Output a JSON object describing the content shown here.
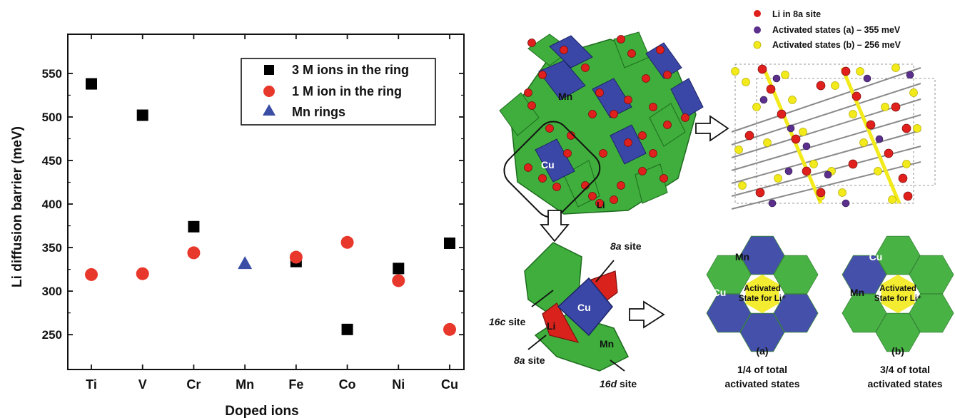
{
  "chart_data": {
    "type": "scatter",
    "ylabel": "Li diffusion barrier (meV)",
    "xlabel": "Doped ions",
    "categories": [
      "Ti",
      "V",
      "Cr",
      "Mn",
      "Fe",
      "Co",
      "Ni",
      "Cu"
    ],
    "ylim": [
      210,
      595
    ],
    "yticks": [
      250,
      300,
      350,
      400,
      450,
      500,
      550
    ],
    "grid": false,
    "legend_position": "top-right",
    "series": [
      {
        "name": "3 M ions in the ring",
        "marker": "square",
        "color": "#000000",
        "points": [
          {
            "x": "Ti",
            "y": 538
          },
          {
            "x": "V",
            "y": 502
          },
          {
            "x": "Cr",
            "y": 374
          },
          {
            "x": "Fe",
            "y": 334
          },
          {
            "x": "Co",
            "y": 256
          },
          {
            "x": "Ni",
            "y": 326
          },
          {
            "x": "Cu",
            "y": 355
          }
        ]
      },
      {
        "name": "1 M ion in the ring",
        "marker": "circle",
        "color": "#e8372b",
        "points": [
          {
            "x": "Ti",
            "y": 319
          },
          {
            "x": "V",
            "y": 320
          },
          {
            "x": "Cr",
            "y": 344
          },
          {
            "x": "Fe",
            "y": 339
          },
          {
            "x": "Co",
            "y": 356
          },
          {
            "x": "Ni",
            "y": 312
          },
          {
            "x": "Cu",
            "y": 256
          }
        ]
      },
      {
        "name": "Mn rings",
        "marker": "triangle",
        "color": "#3b4ea6",
        "points": [
          {
            "x": "Mn",
            "y": 332
          }
        ]
      }
    ]
  },
  "legend_right": [
    {
      "label": "Li in 8a site",
      "color": "#e0201c"
    },
    {
      "label": "Activated states (a) – 355 meV",
      "color": "#5b2f8c"
    },
    {
      "label": "Activated states (b) – 256 meV",
      "color": "#f2ea1a"
    }
  ],
  "structure_labels": {
    "mn_main": "Mn",
    "cu_main": "Cu",
    "li_main": "Li",
    "site_8a_top_num": "8a",
    "site_8a_top_text": " site",
    "site_16c_num": "16c",
    "site_16c_text": " site",
    "site_8a_bottom_num": "8a",
    "site_8a_bottom_text": " site",
    "site_16d_num": "16d",
    "site_16d_text": " site",
    "li_small": "Li",
    "cu_small": "Cu",
    "mn_small": "Mn"
  },
  "panel_a": {
    "mn": "Mn",
    "cu": "Cu",
    "activated_line1": "Activated",
    "activated_line2": "State for Li⁺",
    "tag": "(a)",
    "caption_line1": "1/4 of total",
    "caption_line2": "activated states"
  },
  "panel_b": {
    "cu": "Cu",
    "mn": "Mn",
    "activated_line1": "Activated",
    "activated_line2": "State for Li⁺",
    "tag": "(b)",
    "caption_line1": "3/4 of total",
    "caption_line2": "activated states"
  },
  "colors": {
    "green": "#3fae3c",
    "blue": "#3a47a6",
    "red": "#e0201c",
    "yellow": "#f2ea1a",
    "purple": "#5b2f8c"
  }
}
